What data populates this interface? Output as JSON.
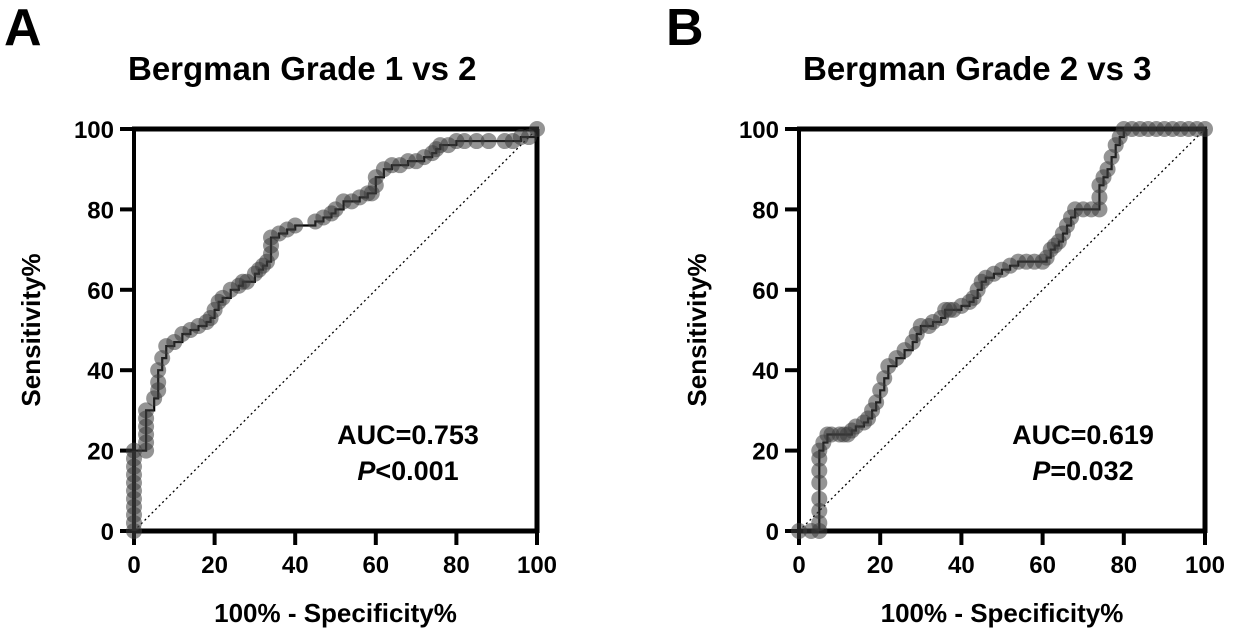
{
  "chart_data": [
    {
      "panel": "A",
      "type": "line",
      "subtype": "roc",
      "title": "Bergman Grade 1 vs 2",
      "xlabel": "100% - Specificity%",
      "ylabel": "Sensitivity%",
      "xlim": [
        0,
        100
      ],
      "ylim": [
        0,
        100
      ],
      "xticks": [
        0,
        20,
        40,
        60,
        80,
        100
      ],
      "yticks": [
        0,
        20,
        40,
        60,
        80,
        100
      ],
      "grid": false,
      "reference_line": {
        "from": [
          0,
          0
        ],
        "to": [
          100,
          100
        ],
        "style": "dotted"
      },
      "annotations": [
        {
          "label": "AUC",
          "text": "AUC=0.753"
        },
        {
          "label": "P",
          "prefix": "P",
          "text": "<0.001"
        }
      ],
      "auc": 0.753,
      "p_value": "<0.001",
      "x": [
        0,
        0,
        0,
        0,
        0,
        0,
        0,
        0,
        0,
        0,
        0,
        3,
        3,
        3,
        3,
        3,
        3,
        5,
        6,
        6,
        6,
        7,
        8,
        10,
        12,
        14,
        16,
        18,
        19,
        20,
        21,
        22,
        24,
        26,
        27,
        28,
        30,
        31,
        32,
        33,
        34,
        34,
        34,
        36,
        38,
        40,
        45,
        47,
        49,
        50,
        52,
        54,
        56,
        58,
        59,
        60,
        60,
        62,
        64,
        66,
        68,
        70,
        72,
        74,
        75,
        76,
        78,
        80,
        82,
        85,
        88,
        92,
        94,
        96,
        98,
        100
      ],
      "y": [
        0,
        2,
        4,
        6,
        8,
        10,
        12,
        14,
        16,
        18,
        20,
        20,
        22,
        24,
        26,
        28,
        30,
        33,
        35,
        37,
        40,
        43,
        46,
        47,
        49,
        50,
        51,
        52,
        53,
        55,
        57,
        58,
        60,
        61,
        62,
        62,
        64,
        65,
        66,
        67,
        69,
        71,
        73,
        74,
        75,
        76,
        77,
        78,
        79,
        80,
        82,
        82,
        83,
        84,
        84,
        86,
        88,
        90,
        91,
        91,
        92,
        92,
        93,
        94,
        95,
        96,
        96,
        97,
        97,
        97,
        97,
        97,
        97,
        98,
        98,
        100
      ]
    },
    {
      "panel": "B",
      "type": "line",
      "subtype": "roc",
      "title": "Bergman Grade 2 vs 3",
      "xlabel": "100% - Specificity%",
      "ylabel": "Sensitivity%",
      "xlim": [
        0,
        100
      ],
      "ylim": [
        0,
        100
      ],
      "xticks": [
        0,
        20,
        40,
        60,
        80,
        100
      ],
      "yticks": [
        0,
        20,
        40,
        60,
        80,
        100
      ],
      "grid": false,
      "reference_line": {
        "from": [
          0,
          0
        ],
        "to": [
          100,
          100
        ],
        "style": "dotted"
      },
      "annotations": [
        {
          "label": "AUC",
          "text": "AUC=0.619"
        },
        {
          "label": "P",
          "prefix": "P",
          "text": "=0.032"
        }
      ],
      "auc": 0.619,
      "p_value": "=0.032",
      "x": [
        0,
        3,
        5,
        5,
        5,
        5,
        5,
        5,
        5,
        5,
        6,
        7,
        8,
        10,
        11,
        12,
        13,
        14,
        16,
        17,
        18,
        19,
        20,
        21,
        22,
        24,
        26,
        28,
        29,
        30,
        32,
        33,
        35,
        36,
        37,
        38,
        40,
        42,
        43,
        44,
        45,
        46,
        48,
        50,
        52,
        54,
        56,
        58,
        60,
        61,
        62,
        63,
        64,
        65,
        66,
        67,
        68,
        70,
        72,
        74,
        74,
        74,
        75,
        76,
        77,
        78,
        79,
        80,
        82,
        84,
        86,
        88,
        90,
        92,
        94,
        96,
        98,
        100
      ],
      "y": [
        0,
        0,
        0,
        2,
        5,
        8,
        12,
        15,
        18,
        20,
        22,
        24,
        24,
        24,
        24,
        24,
        25,
        26,
        27,
        28,
        30,
        32,
        35,
        38,
        41,
        43,
        45,
        47,
        49,
        51,
        51,
        52,
        53,
        55,
        55,
        55,
        56,
        57,
        58,
        60,
        62,
        63,
        64,
        65,
        66,
        67,
        67,
        67,
        67,
        68,
        70,
        71,
        72,
        74,
        76,
        78,
        80,
        80,
        80,
        80,
        83,
        86,
        88,
        90,
        93,
        96,
        98,
        100,
        100,
        100,
        100,
        100,
        100,
        100,
        100,
        100,
        100,
        100
      ]
    }
  ]
}
